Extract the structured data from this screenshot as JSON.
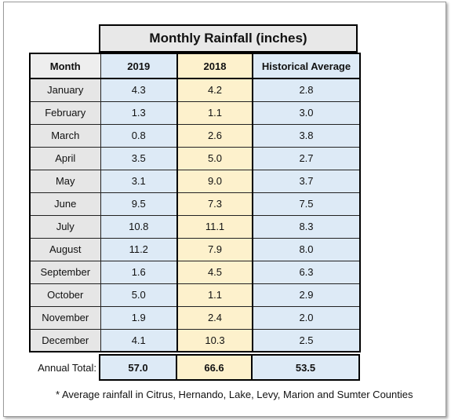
{
  "title": "Monthly Rainfall (inches)",
  "headers": {
    "month": "Month",
    "y2019": "2019",
    "y2018": "2018",
    "historical": "Historical Average"
  },
  "rows": [
    {
      "month": "January",
      "y2019": "4.3",
      "y2018": "4.2",
      "historical": "2.8"
    },
    {
      "month": "February",
      "y2019": "1.3",
      "y2018": "1.1",
      "historical": "3.0"
    },
    {
      "month": "March",
      "y2019": "0.8",
      "y2018": "2.6",
      "historical": "3.8"
    },
    {
      "month": "April",
      "y2019": "3.5",
      "y2018": "5.0",
      "historical": "2.7"
    },
    {
      "month": "May",
      "y2019": "3.1",
      "y2018": "9.0",
      "historical": "3.7"
    },
    {
      "month": "June",
      "y2019": "9.5",
      "y2018": "7.3",
      "historical": "7.5"
    },
    {
      "month": "July",
      "y2019": "10.8",
      "y2018": "11.1",
      "historical": "8.3"
    },
    {
      "month": "August",
      "y2019": "11.2",
      "y2018": "7.9",
      "historical": "8.0"
    },
    {
      "month": "September",
      "y2019": "1.6",
      "y2018": "4.5",
      "historical": "6.3"
    },
    {
      "month": "October",
      "y2019": "5.0",
      "y2018": "1.1",
      "historical": "2.9"
    },
    {
      "month": "November",
      "y2019": "1.9",
      "y2018": "2.4",
      "historical": "2.0"
    },
    {
      "month": "December",
      "y2019": "4.1",
      "y2018": "10.3",
      "historical": "2.5"
    }
  ],
  "totals": {
    "label": "Annual Total:",
    "y2019": "57.0",
    "y2018": "66.6",
    "historical": "53.5"
  },
  "footnote": "* Average rainfall in Citrus, Hernando, Lake, Levy, Marion and Sumter Counties",
  "colors": {
    "blue_cell": "#ddeaf6",
    "yellow_cell": "#fdf1cc",
    "gray_cell": "#e6e6e6"
  }
}
